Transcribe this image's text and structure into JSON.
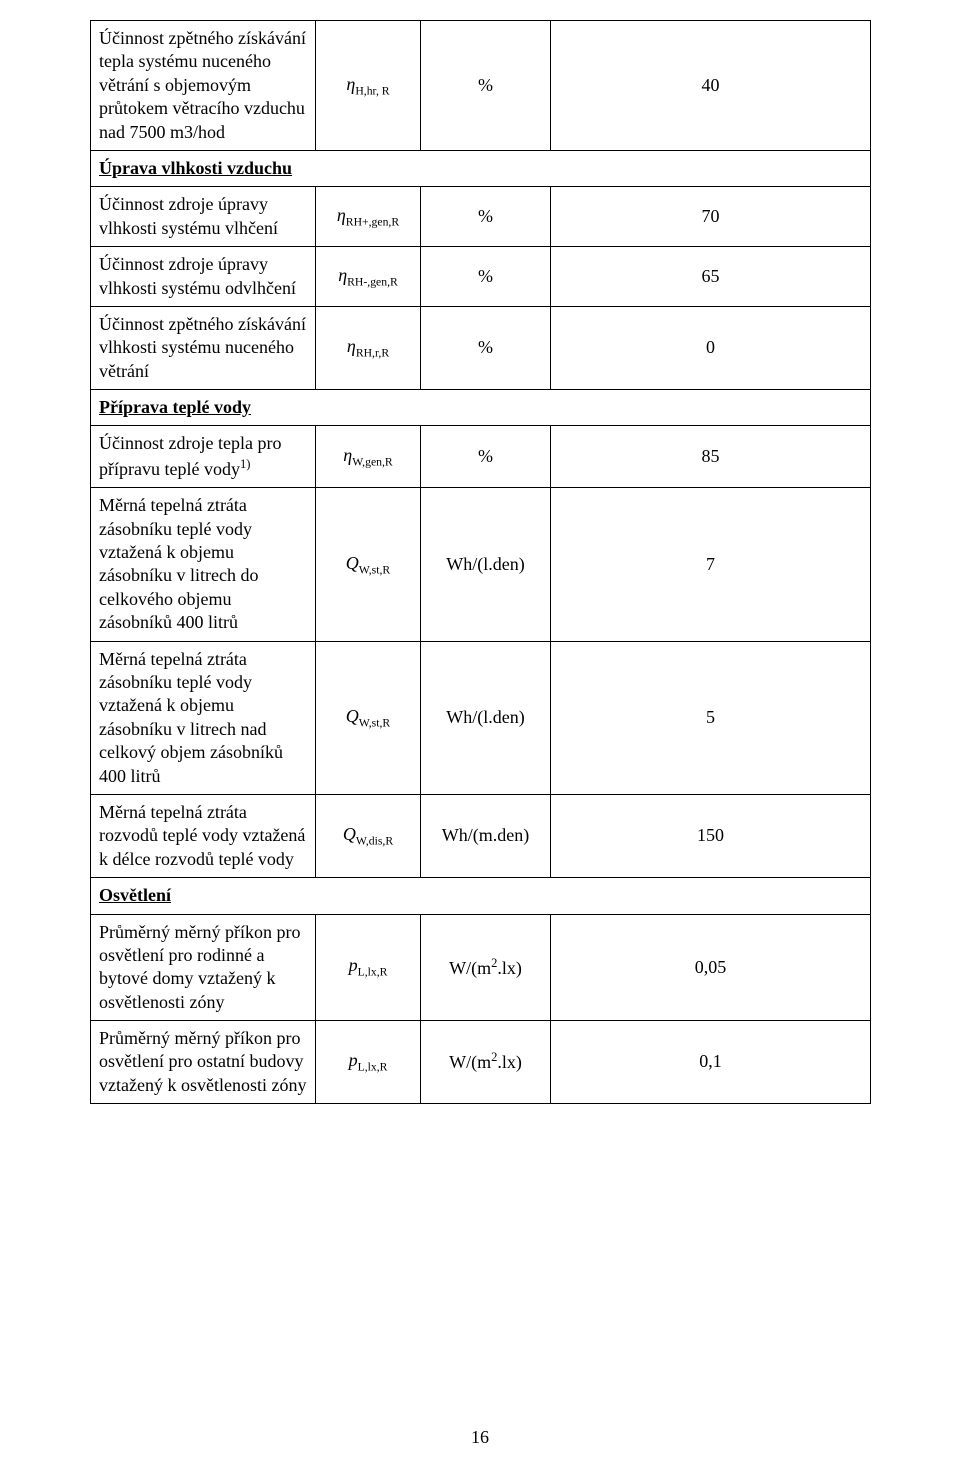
{
  "page_number": "16",
  "colors": {
    "border": "#000000",
    "background": "#ffffff",
    "text": "#000000"
  },
  "typography": {
    "body_font": "Times New Roman",
    "body_size_pt": 14
  },
  "rows": [
    {
      "type": "data",
      "param": "Účinnost zpětného získávání tepla systému nuceného větrání s objemovým průtokem větracího vzduchu nad 7500 m3/hod",
      "sym_html": "<i>η</i><sub>H,hr, R</sub>",
      "unit": "%",
      "value": "40"
    },
    {
      "type": "section",
      "title": "Úprava vlhkosti vzduchu"
    },
    {
      "type": "data",
      "param": "Účinnost zdroje úpravy vlhkosti systému vlhčení",
      "sym_html": "<i>η</i><sub>RH+,gen,R</sub>",
      "unit": "%",
      "value": "70"
    },
    {
      "type": "data",
      "param": "Účinnost zdroje úpravy vlhkosti systému odvlhčení",
      "sym_html": "<i>η</i><sub>RH-,gen,R</sub>",
      "unit": "%",
      "value": "65"
    },
    {
      "type": "data",
      "param": "Účinnost zpětného získávání vlhkosti systému nuceného větrání",
      "sym_html": "<i>η</i><sub>RH,r,R</sub>",
      "unit": "%",
      "value": "0"
    },
    {
      "type": "section",
      "title": "Příprava teplé vody"
    },
    {
      "type": "data",
      "param_html": "Účinnost zdroje tepla pro přípravu teplé vody<span class=\"sup\">1)</span>",
      "sym_html": "<i>η</i><sub>W,gen,R</sub>",
      "unit": "%",
      "value": "85"
    },
    {
      "type": "data",
      "param": "Měrná tepelná ztráta zásobníku teplé vody vztažená k objemu zásobníku v litrech do celkového objemu zásobníků 400 litrů",
      "sym_html": "<i>Q</i><sub>W,st,R</sub>",
      "unit": "Wh/(l.den)",
      "value": "7"
    },
    {
      "type": "data",
      "param": "Měrná tepelná ztráta zásobníku teplé vody vztažená k objemu zásobníku v litrech nad celkový objem zásobníků 400 litrů",
      "sym_html": "<i>Q</i><sub>W,st,R</sub>",
      "unit": "Wh/(l.den)",
      "value": "5"
    },
    {
      "type": "data",
      "param": "Měrná tepelná ztráta rozvodů teplé vody vztažená k délce rozvodů teplé vody",
      "sym_html": "<i>Q</i><sub>W,dis,R</sub>",
      "unit": "Wh/(m.den)",
      "value": "150"
    },
    {
      "type": "section",
      "title": "Osvětlení"
    },
    {
      "type": "data",
      "param": "Průměrný měrný příkon pro osvětlení pro rodinné a bytové domy vztažený k osvětlenosti zóny",
      "sym_html": "<i>p</i><sub>L,lx,R</sub>",
      "unit_html": "W/(m<span class=\"sup\">2</span>.lx)",
      "value": "0,05"
    },
    {
      "type": "data",
      "param": "Průměrný měrný příkon pro osvětlení pro ostatní budovy vztažený k osvětlenosti zóny",
      "sym_html": "<i>p</i><sub>L,lx,R</sub>",
      "unit_html": "W/(m<span class=\"sup\">2</span>.lx)",
      "value": "0,1"
    }
  ]
}
